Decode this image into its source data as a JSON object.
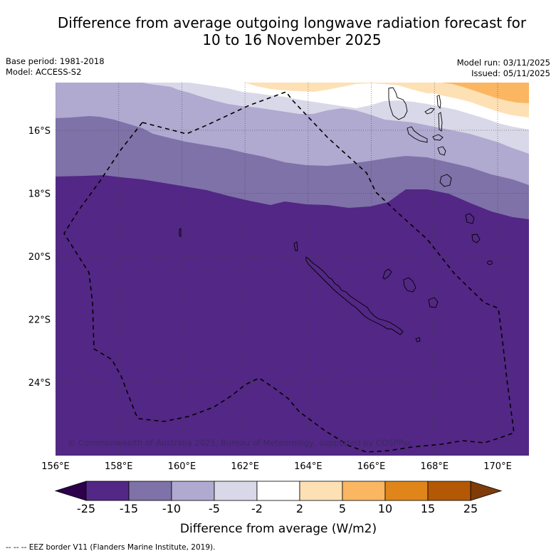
{
  "title_line1": "Difference from average outgoing longwave radiation forecast for",
  "title_line2": "10 to 16 November 2025",
  "meta_left": {
    "base_period": "Base period: 1981-2018",
    "model": "Model: ACCESS-S2"
  },
  "meta_right": {
    "model_run": "Model run: 03/11/2025",
    "issued": "Issued: 05/11/2025"
  },
  "copyright": "© Commonwealth of Australia 2025, Bureau of Meteorology, supported by COSPPac",
  "footer": "-- -- -- EEZ border V11 (Flanders Marine Institute, 2019).",
  "chart_data": {
    "type": "heatmap",
    "title": "Difference from average outgoing longwave radiation forecast for 10 to 16 November 2025",
    "region": "New Caledonia EEZ",
    "lon_range": [
      156,
      171
    ],
    "lat_range": [
      -26.3,
      -14.5
    ],
    "x_ticks": [
      "156°E",
      "158°E",
      "160°E",
      "162°E",
      "164°E",
      "166°E",
      "168°E",
      "170°E"
    ],
    "y_ticks": [
      "16°S",
      "18°S",
      "20°S",
      "22°S",
      "24°S"
    ],
    "grid": true,
    "colorbar": {
      "label": "Difference from average (W/m2)",
      "bounds": [
        -25,
        -15,
        -10,
        -5,
        -2,
        2,
        5,
        10,
        15,
        25
      ],
      "tick_labels": [
        "-25",
        "-15",
        "-10",
        "-5",
        "-2",
        "2",
        "5",
        "10",
        "15",
        "25"
      ],
      "colors": [
        "#532785",
        "#7e72a8",
        "#b0a9d0",
        "#d8d8e9",
        "#ffffff",
        "#fee0b5",
        "#fbb661",
        "#e08519",
        "#b35906"
      ],
      "under_color": "#2d004b",
      "over_color": "#7f3b08",
      "extend": "both"
    },
    "contour_bands": [
      {
        "range": "< -15",
        "color": "#532785",
        "description": "covers most of map south of ~18°S"
      },
      {
        "range": "-15 to -10",
        "color": "#7e72a8"
      },
      {
        "range": "-10 to -5",
        "color": "#b0a9d0"
      },
      {
        "range": "-5 to -2",
        "color": "#d8d8e9"
      },
      {
        "range": "-2 to 2",
        "color": "#ffffff"
      },
      {
        "range": "2 to 5",
        "color": "#fee0b5",
        "description": "northern edge ~162-171°E"
      },
      {
        "range": "5 to 10",
        "color": "#fbb661",
        "description": "north-east corner ~168-171°E"
      }
    ],
    "legend": "EEZ border (dashed line)"
  }
}
